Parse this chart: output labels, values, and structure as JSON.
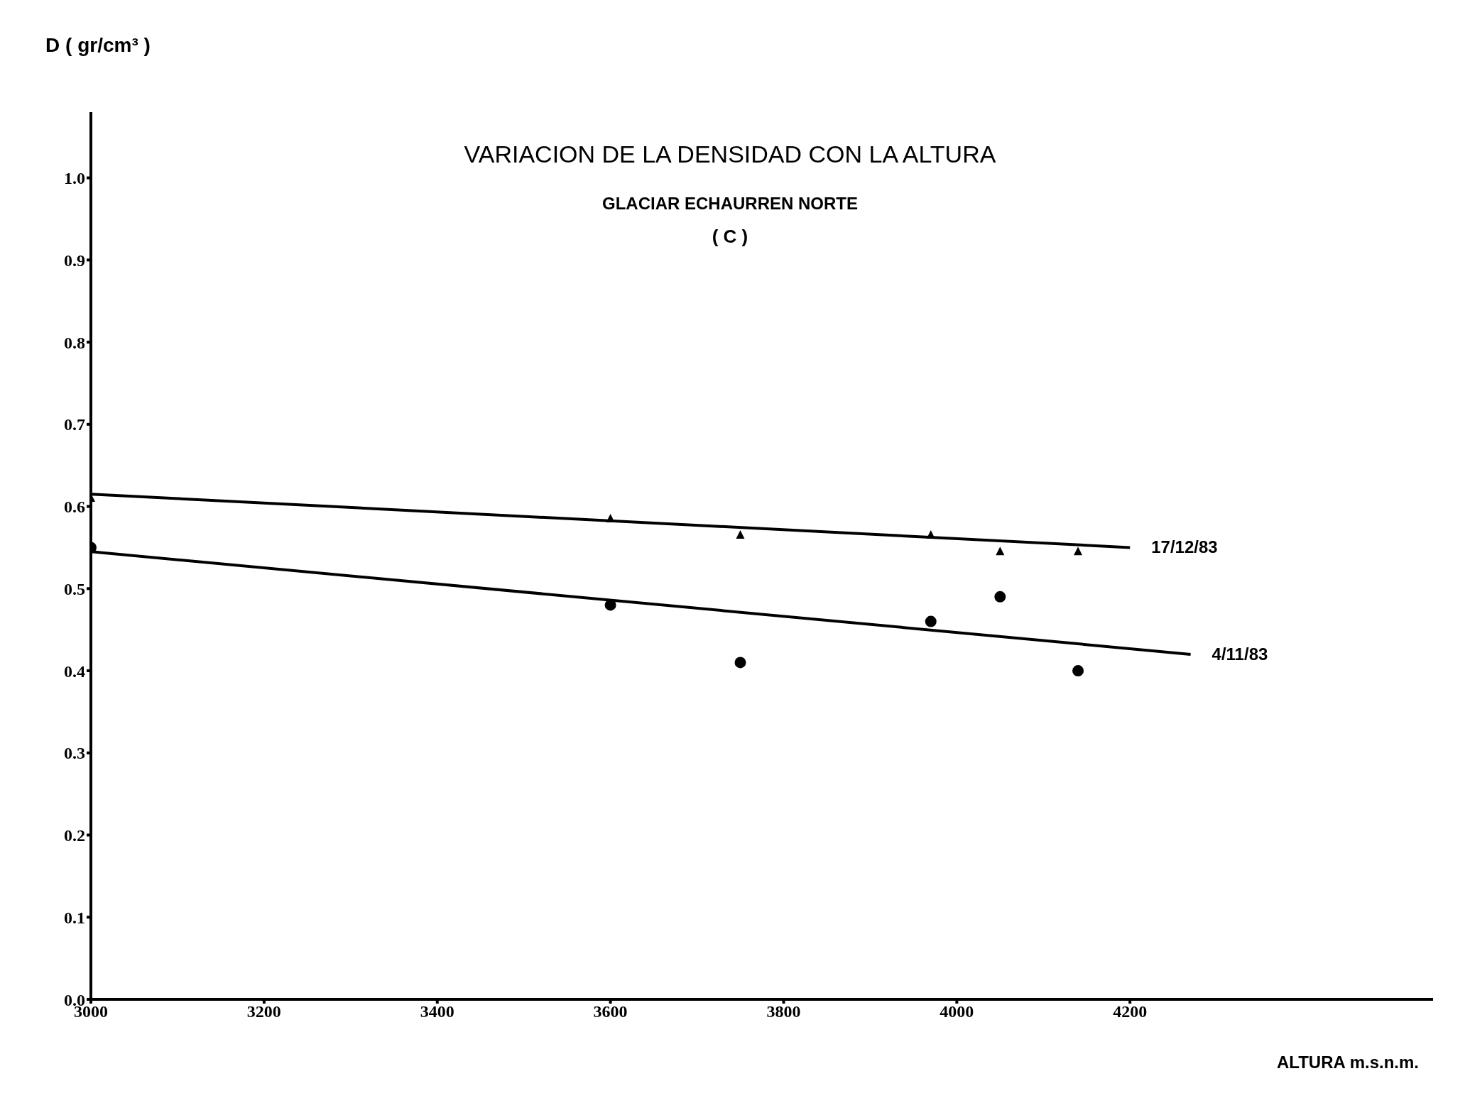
{
  "chart_data": {
    "type": "scatter",
    "title": "VARIACION DE LA DENSIDAD CON LA ALTURA",
    "subtitle": "GLACIAR ECHAURREN NORTE",
    "annotations": [
      "( C )"
    ],
    "xlabel": "ALTURA m.s.n.m.",
    "ylabel": "D ( gr/cm³ )",
    "xlim": [
      3000,
      4550
    ],
    "xticks": [
      3000,
      3200,
      3400,
      3600,
      3800,
      4000,
      4200
    ],
    "ylim": [
      0,
      1.08
    ],
    "yticks": [
      {
        "value": 0,
        "label": "0.0"
      },
      0.1,
      0.2,
      0.3,
      0.4,
      0.5,
      0.6,
      0.7,
      0.8,
      0.9,
      {
        "value": 1,
        "label": "1.0"
      }
    ],
    "series": [
      {
        "color": "#000000",
        "marker": "triangle",
        "x": [
          3000,
          3600,
          3750,
          3970,
          4050,
          4140
        ],
        "values": [
          0.61,
          0.585,
          0.565,
          0.565,
          0.545,
          0.545
        ]
      },
      {
        "color": "#000000",
        "marker": "circle",
        "x": [
          3000,
          3600,
          3750,
          3970,
          4050,
          4140
        ],
        "values": [
          0.55,
          0.48,
          0.41,
          0.46,
          0.49,
          0.4
        ]
      },
      {
        "type": "line",
        "name": "17/12/83",
        "color": "#000000",
        "marker": "none",
        "x": [
          3000,
          4200
        ],
        "values": [
          0.615,
          0.55
        ]
      },
      {
        "type": "line",
        "name": "4/11/83",
        "color": "#000000",
        "marker": "none",
        "x": [
          3000,
          4270
        ],
        "values": [
          0.545,
          0.42
        ]
      }
    ]
  }
}
